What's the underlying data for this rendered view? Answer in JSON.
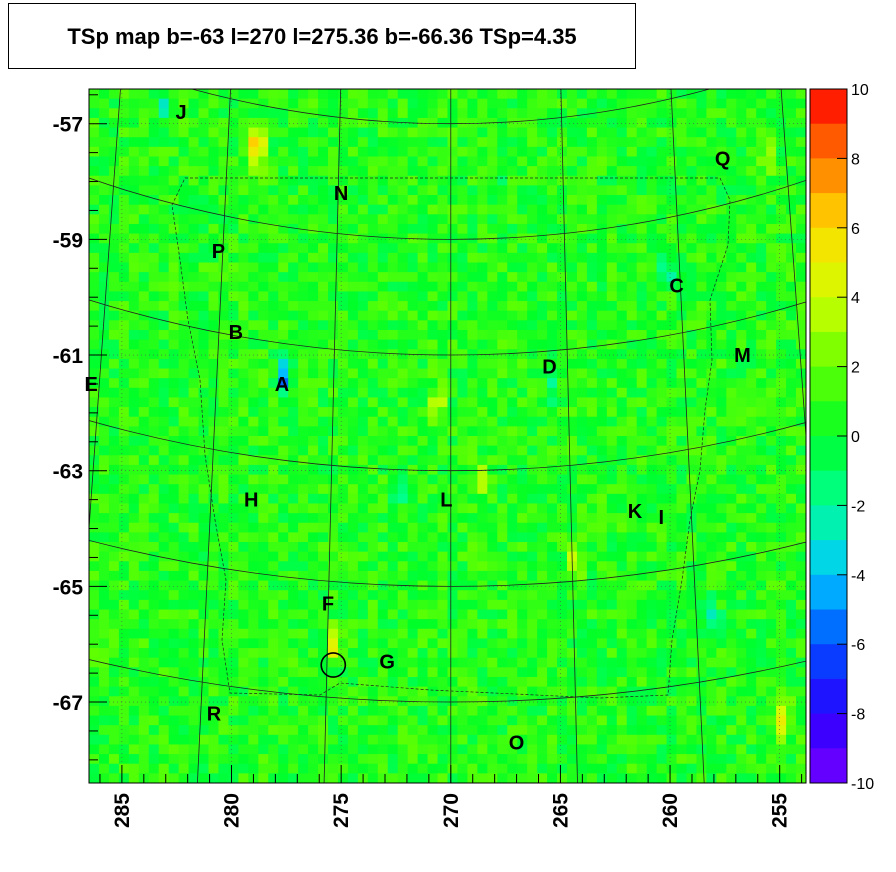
{
  "title": "TSp map b=-63 l=270 l=275.36 b=-66.36 TSp=4.35",
  "chart_data": {
    "type": "heatmap",
    "x_ticks": [
      "285",
      "280",
      "275",
      "270",
      "265",
      "260",
      "255"
    ],
    "y_ticks": [
      "-57",
      "-59",
      "-61",
      "-63",
      "-65",
      "-67"
    ],
    "xlim": [
      286.5,
      253.8
    ],
    "ylim": [
      -68.4,
      -56.4
    ],
    "zlim": [
      -10,
      10
    ],
    "colorbar_ticks": [
      "10",
      "8",
      "6",
      "4",
      "2",
      "0",
      "-2",
      "-4",
      "-6",
      "-8",
      "-10"
    ],
    "sources": [
      {
        "label": "J",
        "l": 282.3,
        "b": -56.8
      },
      {
        "label": "Q",
        "l": 257.6,
        "b": -57.6
      },
      {
        "label": "N",
        "l": 275.0,
        "b": -58.2
      },
      {
        "label": "P",
        "l": 280.6,
        "b": -59.2
      },
      {
        "label": "C",
        "l": 259.7,
        "b": -59.8
      },
      {
        "label": "B",
        "l": 279.8,
        "b": -60.6
      },
      {
        "label": "D",
        "l": 265.5,
        "b": -61.2
      },
      {
        "label": "M",
        "l": 256.7,
        "b": -61.0
      },
      {
        "label": "E",
        "l": 286.4,
        "b": -61.5
      },
      {
        "label": "A",
        "l": 277.7,
        "b": -61.5
      },
      {
        "label": "H",
        "l": 279.1,
        "b": -63.5
      },
      {
        "label": "L",
        "l": 270.2,
        "b": -63.5
      },
      {
        "label": "K",
        "l": 261.6,
        "b": -63.7
      },
      {
        "label": "I",
        "l": 260.4,
        "b": -63.8
      },
      {
        "label": "F",
        "l": 275.6,
        "b": -65.3
      },
      {
        "label": "G",
        "l": 272.9,
        "b": -66.3
      },
      {
        "label": "R",
        "l": 280.8,
        "b": -67.2
      },
      {
        "label": "O",
        "l": 267.0,
        "b": -67.7
      }
    ],
    "hotspots": [
      {
        "l": 278.8,
        "b": -57.4,
        "value": 9
      },
      {
        "l": 254.8,
        "b": -67.3,
        "value": 6
      },
      {
        "l": 275.3,
        "b": -66.0,
        "value": 5
      },
      {
        "l": 264.3,
        "b": -64.5,
        "value": 4
      },
      {
        "l": 255.6,
        "b": -57.6,
        "value": 4
      },
      {
        "l": 268.5,
        "b": -63.1,
        "value": 3
      },
      {
        "l": 270.6,
        "b": -61.8,
        "value": 3
      },
      {
        "l": 277.6,
        "b": -61.4,
        "value": -6
      },
      {
        "l": 258.0,
        "b": -65.6,
        "value": -4
      },
      {
        "l": 260.1,
        "b": -59.5,
        "value": -3
      },
      {
        "l": 272.3,
        "b": -63.3,
        "value": -3
      },
      {
        "l": 283.1,
        "b": -56.7,
        "value": -3
      },
      {
        "l": 265.5,
        "b": -61.6,
        "value": -2
      },
      {
        "l": 267.8,
        "b": -58.0,
        "value": -2
      }
    ],
    "highlight_circle": {
      "l": 275.36,
      "b": -66.36,
      "radius_deg": 0.55
    },
    "grid": true
  }
}
